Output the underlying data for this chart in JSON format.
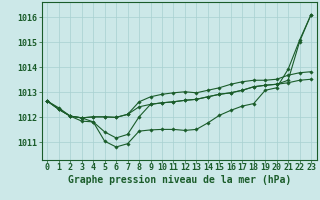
{
  "bg_color": "#cce8e8",
  "grid_color": "#a8d0d0",
  "line_color": "#1a5c2a",
  "marker_color": "#1a5c2a",
  "xlabel": "Graphe pression niveau de la mer (hPa)",
  "xlabel_fontsize": 7,
  "tick_fontsize": 6,
  "ylabel_ticks": [
    1011,
    1012,
    1013,
    1014,
    1015,
    1016
  ],
  "xlim": [
    -0.5,
    23.5
  ],
  "ylim": [
    1010.3,
    1016.6
  ],
  "series1": [
    1012.65,
    1012.38,
    1012.05,
    1011.85,
    1011.82,
    1011.05,
    1010.82,
    1010.95,
    1011.45,
    1011.5,
    1011.52,
    1011.52,
    1011.48,
    1011.52,
    1011.78,
    1012.08,
    1012.28,
    1012.45,
    1012.55,
    1013.08,
    1013.18,
    1013.92,
    1015.08,
    1016.1
  ],
  "series2": [
    1012.65,
    1012.32,
    1012.05,
    1011.98,
    1012.02,
    1012.02,
    1012.0,
    1012.12,
    1012.42,
    1012.52,
    1012.58,
    1012.62,
    1012.68,
    1012.72,
    1012.82,
    1012.92,
    1012.98,
    1013.08,
    1013.22,
    1013.28,
    1013.32,
    1013.38,
    1013.48,
    1013.52
  ],
  "series3": [
    1012.65,
    1012.32,
    1012.05,
    1011.98,
    1011.82,
    1011.42,
    1011.18,
    1011.32,
    1012.02,
    1012.52,
    1012.58,
    1012.62,
    1012.68,
    1012.72,
    1012.82,
    1012.92,
    1012.98,
    1013.08,
    1013.22,
    1013.28,
    1013.32,
    1013.48,
    1015.02,
    1016.1
  ],
  "series4": [
    1012.65,
    1012.32,
    1012.05,
    1011.98,
    1012.02,
    1012.02,
    1012.0,
    1012.12,
    1012.62,
    1012.82,
    1012.92,
    1012.98,
    1013.02,
    1012.98,
    1013.08,
    1013.18,
    1013.32,
    1013.42,
    1013.48,
    1013.48,
    1013.52,
    1013.68,
    1013.78,
    1013.82
  ]
}
